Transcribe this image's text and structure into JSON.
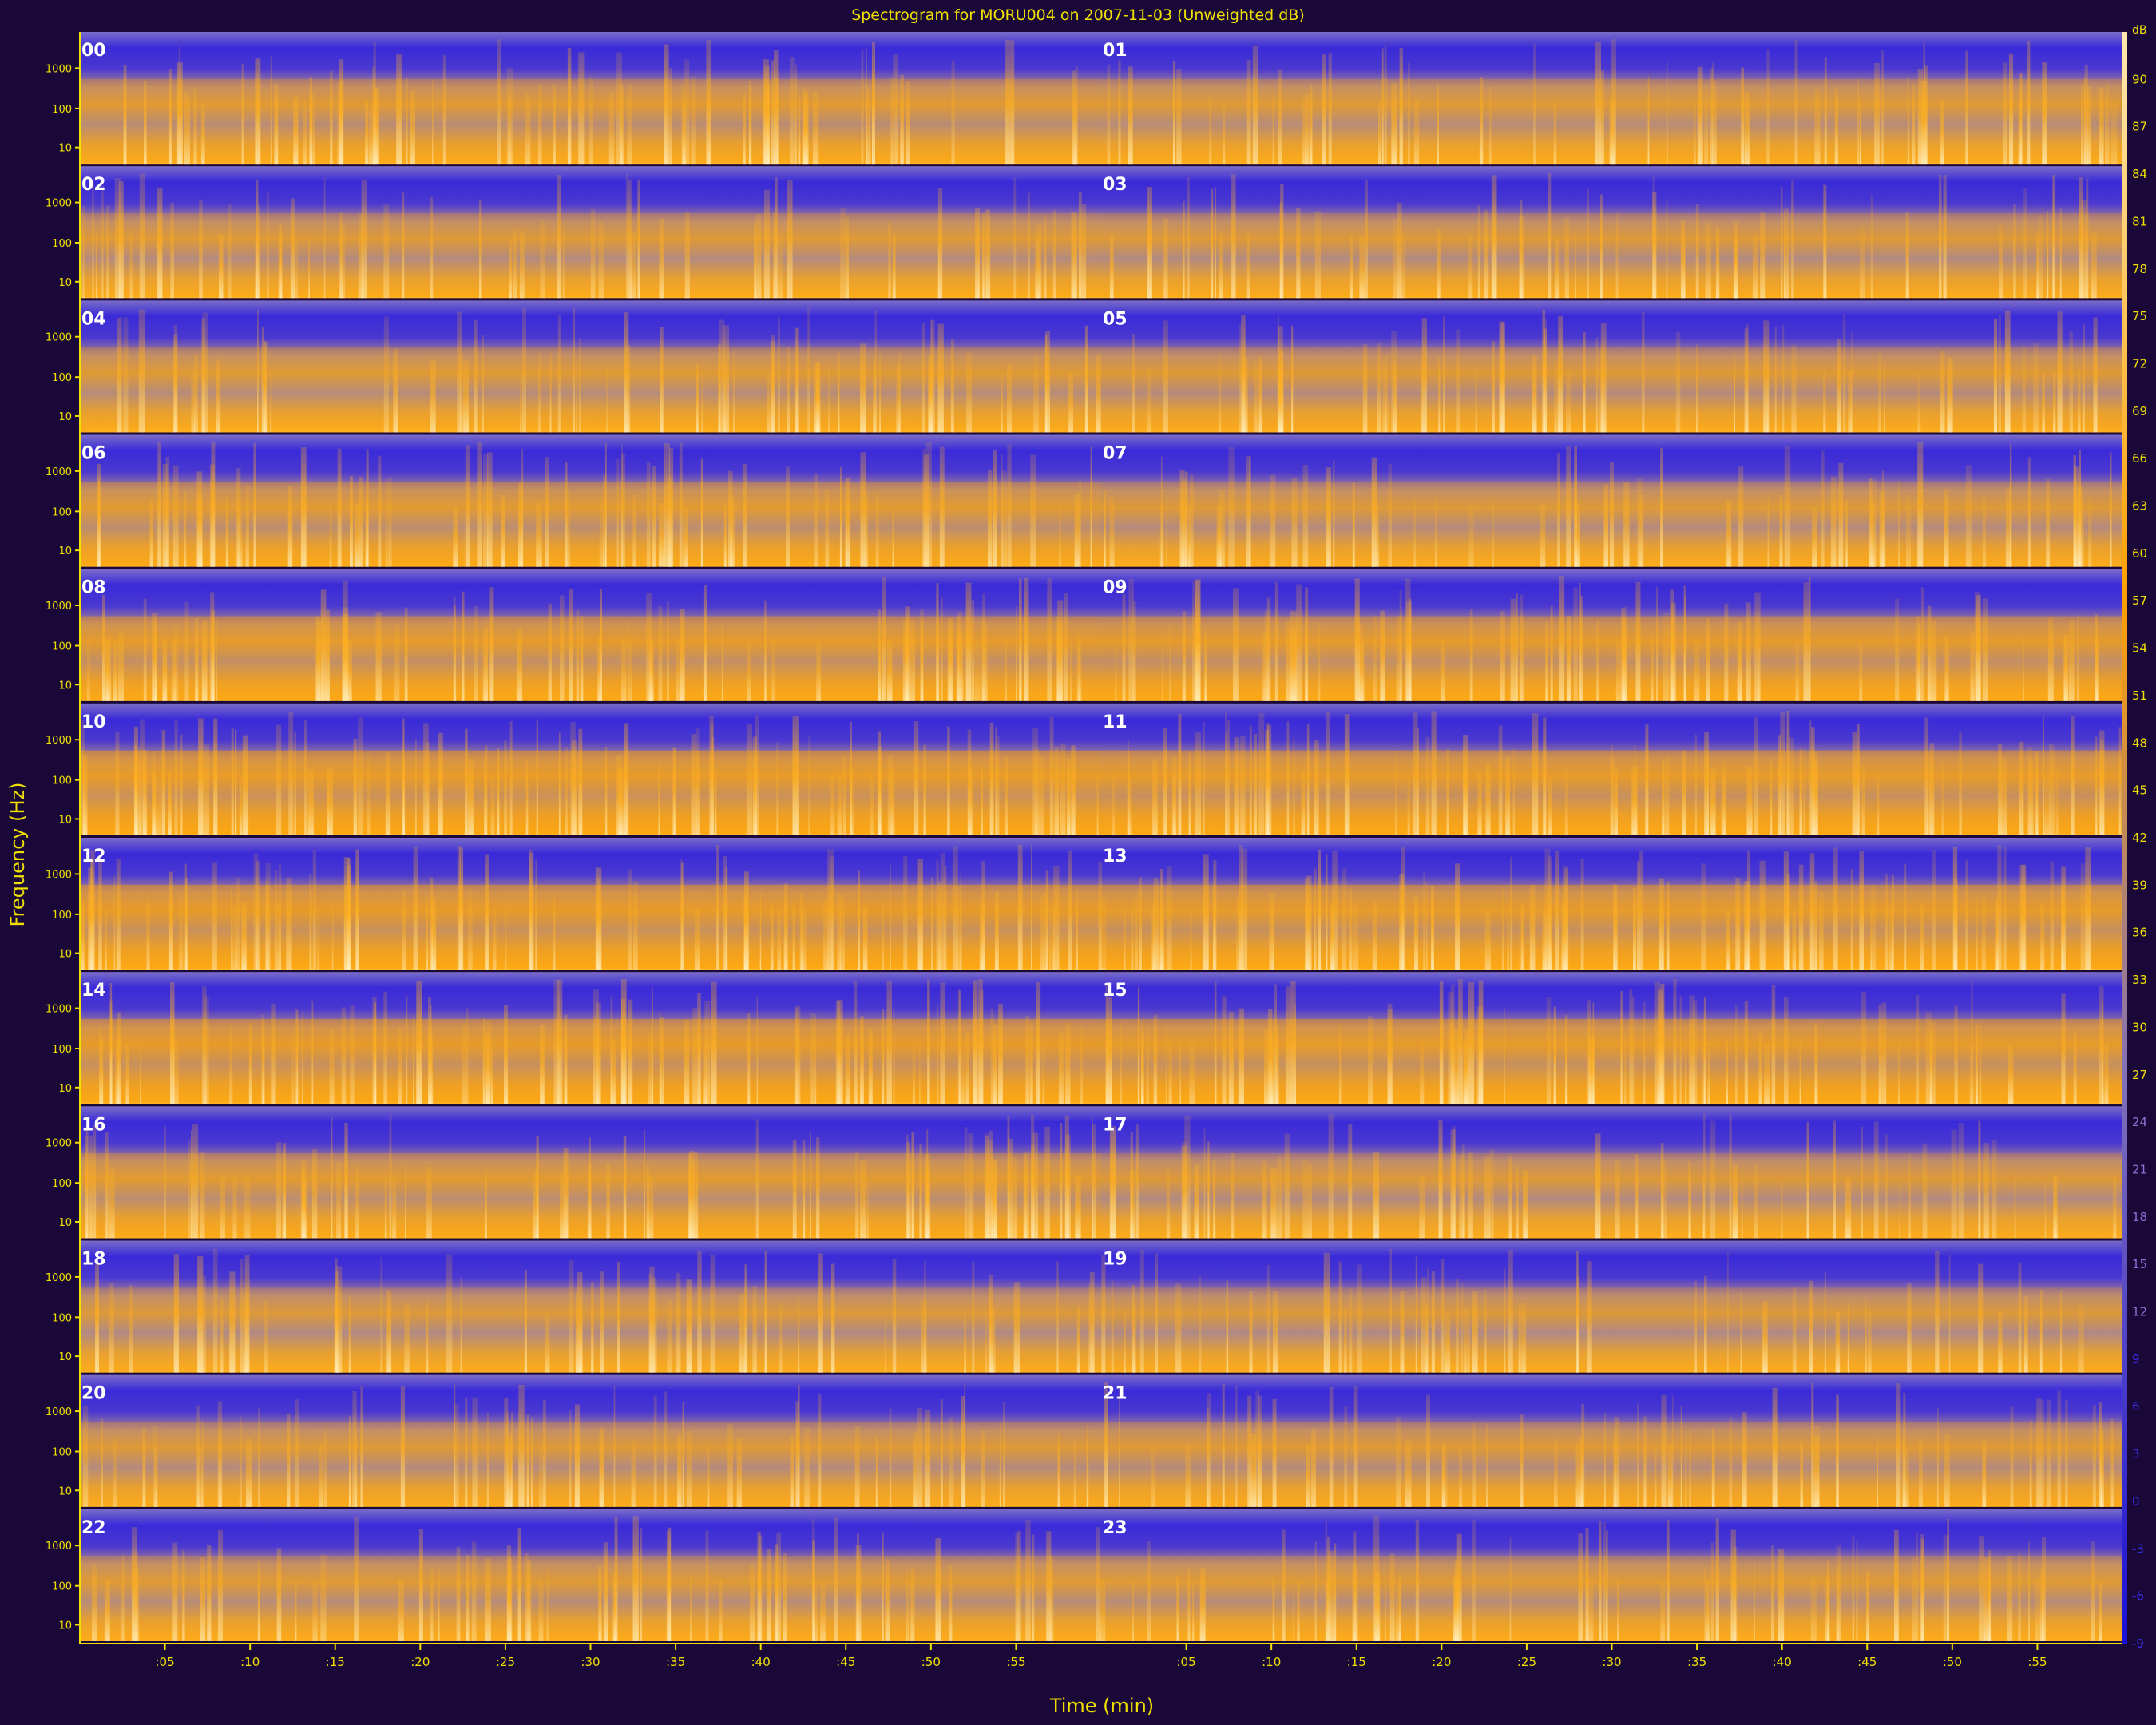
{
  "chart_data": {
    "type": "heatmap",
    "title": "Spectrogram for MORU004 on 2007-11-03 (Unweighted dB)",
    "xlabel": "Time (min)",
    "ylabel": "Frequency (Hz)",
    "hour_labels": [
      "00",
      "01",
      "02",
      "03",
      "04",
      "05",
      "06",
      "07",
      "08",
      "09",
      "10",
      "11",
      "12",
      "13",
      "14",
      "15",
      "16",
      "17",
      "18",
      "19",
      "20",
      "21",
      "22",
      "23"
    ],
    "freq_ticks": [
      "1000",
      "100",
      "10"
    ],
    "x_ticks": [
      ":05",
      ":10",
      ":15",
      ":20",
      ":25",
      ":30",
      ":35",
      ":40",
      ":45",
      ":50",
      ":55"
    ],
    "x_range_min": [
      0,
      60
    ],
    "colorbar": {
      "unit": "dB",
      "range": [
        -9,
        93
      ],
      "ticks": [
        90,
        87,
        84,
        81,
        78,
        75,
        72,
        69,
        66,
        63,
        60,
        57,
        54,
        51,
        48,
        45,
        42,
        39,
        36,
        33,
        30,
        27,
        24,
        21,
        18,
        15,
        12,
        9,
        6,
        3,
        0,
        -3,
        -6,
        -9
      ],
      "colors": [
        "#1a10d8",
        "#8070b8",
        "#ffa000",
        "#ffe8b0"
      ]
    },
    "activity_by_hour": [
      0.55,
      0.5,
      0.45,
      0.42,
      0.5,
      0.48,
      0.6,
      0.45,
      0.72,
      0.7,
      0.85,
      0.8,
      0.82,
      0.78,
      0.8,
      0.78,
      0.6,
      0.42,
      0.38,
      0.36,
      0.45,
      0.48,
      0.5,
      0.5
    ],
    "grid": false,
    "legend": "right colorbar"
  }
}
